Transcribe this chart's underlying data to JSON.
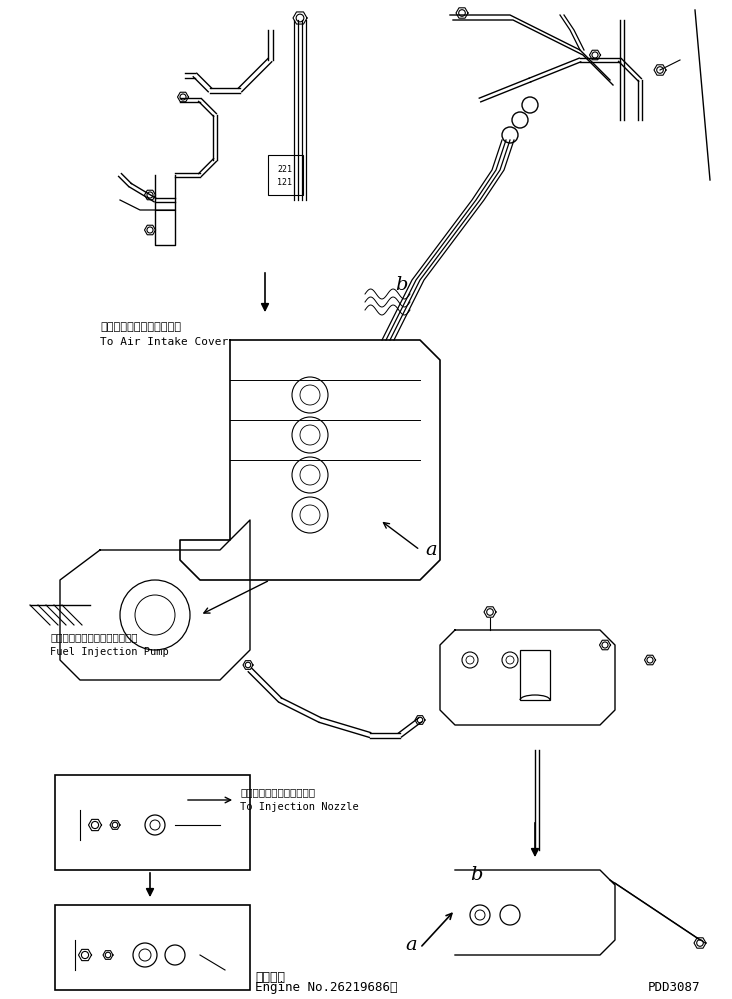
{
  "title": "",
  "bg_color": "#ffffff",
  "line_color": "#000000",
  "fig_width": 7.32,
  "fig_height": 9.99,
  "dpi": 100,
  "bottom_text_line1": "適用号機",
  "bottom_text_line2": "Engine No.26219686～",
  "bottom_right_text": "PDD3087",
  "label_a": "a",
  "label_b": "b",
  "label_fuel_jp": "フェルインジェクションポンプ",
  "label_fuel_en": "Fuel Injection Pump",
  "label_air_jp": "エアーインテークカバーヘ",
  "label_air_en": "To Air Intake Cover",
  "label_nozzle_jp": "インジェクションノズルヘ",
  "label_nozzle_en": "To Injection Nozzle"
}
